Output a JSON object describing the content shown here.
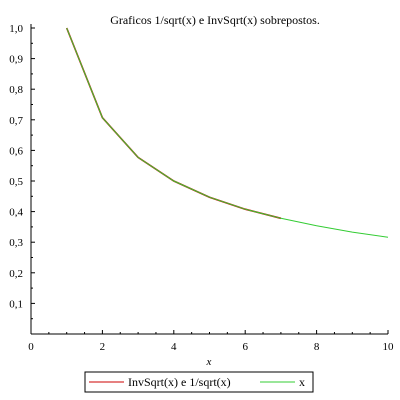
{
  "chart_data": {
    "type": "line",
    "title": "Graficos 1/sqrt(x) e InvSqrt(x) sobrepostos.",
    "xlabel": "x",
    "ylabel": "",
    "xlim": [
      0,
      10
    ],
    "ylim": [
      0,
      1.0
    ],
    "x_ticks": [
      0,
      2,
      4,
      6,
      8,
      10
    ],
    "y_ticks": [
      0.1,
      0.2,
      0.3,
      0.4,
      0.5,
      0.6,
      0.7,
      0.8,
      0.9,
      1.0
    ],
    "y_tick_labels": [
      "0,1",
      "0,2",
      "0,3",
      "0,4",
      "0,5",
      "0,6",
      "0,7",
      "0,8",
      "0,9",
      "1,0"
    ],
    "grid": false,
    "legend_position": "bottom",
    "series": [
      {
        "name": "InvSqrt(x) e 1/sqrt(x)",
        "color": "#cc0000",
        "x": [
          1,
          2,
          3,
          4,
          5,
          6,
          7
        ],
        "y": [
          1.0,
          0.707,
          0.577,
          0.5,
          0.447,
          0.408,
          0.378
        ]
      },
      {
        "name": "x",
        "color": "#33cc33",
        "x": [
          1,
          2,
          3,
          4,
          5,
          6,
          7,
          8,
          9,
          10
        ],
        "y": [
          1.0,
          0.707,
          0.577,
          0.5,
          0.447,
          0.408,
          0.378,
          0.354,
          0.333,
          0.316
        ]
      }
    ]
  }
}
